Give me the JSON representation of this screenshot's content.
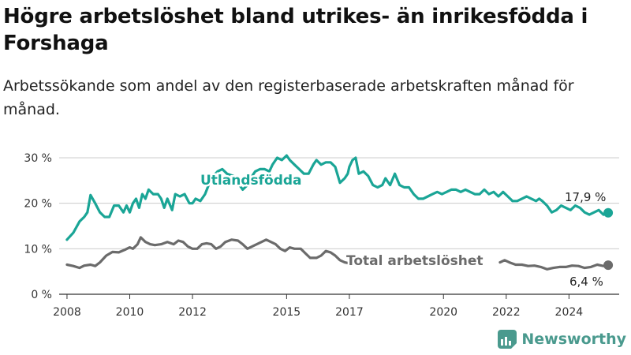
{
  "title": "Högre arbetslöshet bland utrikes- än inrikesfödda i Forshaga",
  "subtitle": "Arbetssökande som andel av den registerbaserade arbetskraften månad för månad.",
  "logo": "Newsworthy",
  "colors": {
    "utlandsfodda": "#1aa596",
    "total": "#6b6b6b",
    "grid": "#cccccc",
    "axis": "#333333"
  },
  "chart_data": {
    "type": "line",
    "xlim": [
      2007.75,
      2025.6
    ],
    "ylim": [
      0,
      30
    ],
    "y_ticks": [
      0,
      10,
      20,
      30
    ],
    "y_tick_labels": [
      "0 %",
      "10 %",
      "20 %",
      "30 %"
    ],
    "x_ticks": [
      2008,
      2010,
      2012,
      2015,
      2017,
      2020,
      2022,
      2024
    ],
    "grid": true,
    "series": [
      {
        "name": "Utlandsfödda",
        "color": "#1aa596",
        "end_label": "17,9 %",
        "points": [
          [
            2008.0,
            12
          ],
          [
            2008.2,
            13.5
          ],
          [
            2008.4,
            16
          ],
          [
            2008.55,
            17
          ],
          [
            2008.65,
            18
          ],
          [
            2008.75,
            21.8
          ],
          [
            2008.9,
            20
          ],
          [
            2009.05,
            18
          ],
          [
            2009.2,
            17
          ],
          [
            2009.35,
            17
          ],
          [
            2009.5,
            19.5
          ],
          [
            2009.65,
            19.5
          ],
          [
            2009.8,
            18
          ],
          [
            2009.9,
            19.5
          ],
          [
            2010.0,
            18
          ],
          [
            2010.1,
            20
          ],
          [
            2010.2,
            21
          ],
          [
            2010.3,
            19
          ],
          [
            2010.4,
            22
          ],
          [
            2010.5,
            21
          ],
          [
            2010.6,
            23
          ],
          [
            2010.75,
            22
          ],
          [
            2010.9,
            22
          ],
          [
            2011.0,
            21
          ],
          [
            2011.1,
            19
          ],
          [
            2011.2,
            21
          ],
          [
            2011.35,
            18.5
          ],
          [
            2011.45,
            22
          ],
          [
            2011.6,
            21.5
          ],
          [
            2011.75,
            22
          ],
          [
            2011.9,
            20
          ],
          [
            2012.0,
            20
          ],
          [
            2012.1,
            21
          ],
          [
            2012.25,
            20.5
          ],
          [
            2012.4,
            22
          ],
          [
            2012.6,
            25.5
          ],
          [
            2012.8,
            27
          ],
          [
            2012.95,
            27.5
          ],
          [
            2013.1,
            26.5
          ],
          [
            2013.3,
            26
          ],
          [
            2013.45,
            24.5
          ],
          [
            2013.6,
            23
          ],
          [
            2013.75,
            24
          ],
          [
            2013.9,
            26
          ],
          [
            2014.0,
            27
          ],
          [
            2014.15,
            27.5
          ],
          [
            2014.3,
            27.5
          ],
          [
            2014.45,
            27
          ],
          [
            2014.55,
            28.5
          ],
          [
            2014.7,
            30
          ],
          [
            2014.85,
            29.5
          ],
          [
            2015.0,
            30.5
          ],
          [
            2015.1,
            29.5
          ],
          [
            2015.25,
            28.5
          ],
          [
            2015.4,
            27.5
          ],
          [
            2015.55,
            26.5
          ],
          [
            2015.7,
            26.5
          ],
          [
            2015.85,
            28.5
          ],
          [
            2015.95,
            29.5
          ],
          [
            2016.1,
            28.5
          ],
          [
            2016.25,
            29
          ],
          [
            2016.4,
            29
          ],
          [
            2016.55,
            28
          ],
          [
            2016.7,
            24.5
          ],
          [
            2016.85,
            25.5
          ],
          [
            2016.95,
            26.5
          ],
          [
            2017.0,
            28
          ],
          [
            2017.1,
            29.5
          ],
          [
            2017.2,
            30
          ],
          [
            2017.3,
            26.5
          ],
          [
            2017.45,
            27
          ],
          [
            2017.6,
            26
          ],
          [
            2017.75,
            24
          ],
          [
            2017.9,
            23.5
          ],
          [
            2018.05,
            24
          ],
          [
            2018.15,
            25.5
          ],
          [
            2018.3,
            24
          ],
          [
            2018.45,
            26.5
          ],
          [
            2018.6,
            24
          ],
          [
            2018.75,
            23.5
          ],
          [
            2018.9,
            23.5
          ],
          [
            2019.05,
            22
          ],
          [
            2019.2,
            21
          ],
          [
            2019.35,
            21
          ],
          [
            2019.5,
            21.5
          ],
          [
            2019.65,
            22
          ],
          [
            2019.8,
            22.5
          ],
          [
            2019.95,
            22
          ],
          [
            2020.1,
            22.5
          ],
          [
            2020.25,
            23
          ],
          [
            2020.4,
            23
          ],
          [
            2020.55,
            22.5
          ],
          [
            2020.7,
            23
          ],
          [
            2020.85,
            22.5
          ],
          [
            2021.0,
            22
          ],
          [
            2021.15,
            22
          ],
          [
            2021.3,
            23
          ],
          [
            2021.45,
            22
          ],
          [
            2021.6,
            22.5
          ],
          [
            2021.75,
            21.5
          ],
          [
            2021.9,
            22.5
          ],
          [
            2022.05,
            21.5
          ],
          [
            2022.2,
            20.5
          ],
          [
            2022.35,
            20.5
          ],
          [
            2022.5,
            21
          ],
          [
            2022.65,
            21.5
          ],
          [
            2022.8,
            21
          ],
          [
            2022.95,
            20.5
          ],
          [
            2023.05,
            21
          ],
          [
            2023.15,
            20.5
          ],
          [
            2023.3,
            19.5
          ],
          [
            2023.45,
            18
          ],
          [
            2023.6,
            18.5
          ],
          [
            2023.75,
            19.5
          ],
          [
            2023.9,
            19
          ],
          [
            2024.05,
            18.5
          ],
          [
            2024.2,
            19.5
          ],
          [
            2024.35,
            19
          ],
          [
            2024.5,
            18
          ],
          [
            2024.65,
            17.5
          ],
          [
            2024.8,
            18
          ],
          [
            2024.95,
            18.5
          ],
          [
            2025.1,
            17.5
          ],
          [
            2025.25,
            17.9
          ]
        ]
      },
      {
        "name": "Total arbetslöshet",
        "color": "#6b6b6b",
        "end_label": "6,4 %",
        "points": [
          [
            2008.0,
            6.5
          ],
          [
            2008.2,
            6.2
          ],
          [
            2008.4,
            5.8
          ],
          [
            2008.55,
            6.3
          ],
          [
            2008.75,
            6.5
          ],
          [
            2008.9,
            6.2
          ],
          [
            2009.05,
            7
          ],
          [
            2009.25,
            8.5
          ],
          [
            2009.45,
            9.3
          ],
          [
            2009.65,
            9.2
          ],
          [
            2009.85,
            9.8
          ],
          [
            2010.0,
            10.3
          ],
          [
            2010.1,
            10
          ],
          [
            2010.25,
            11
          ],
          [
            2010.35,
            12.5
          ],
          [
            2010.5,
            11.5
          ],
          [
            2010.65,
            11
          ],
          [
            2010.8,
            10.8
          ],
          [
            2011.0,
            11
          ],
          [
            2011.2,
            11.5
          ],
          [
            2011.4,
            11
          ],
          [
            2011.55,
            11.8
          ],
          [
            2011.7,
            11.5
          ],
          [
            2011.85,
            10.5
          ],
          [
            2012.0,
            10
          ],
          [
            2012.15,
            10
          ],
          [
            2012.3,
            11
          ],
          [
            2012.45,
            11.2
          ],
          [
            2012.6,
            11
          ],
          [
            2012.75,
            10
          ],
          [
            2012.9,
            10.5
          ],
          [
            2013.05,
            11.5
          ],
          [
            2013.25,
            12
          ],
          [
            2013.45,
            11.8
          ],
          [
            2013.6,
            11
          ],
          [
            2013.75,
            10
          ],
          [
            2013.9,
            10.5
          ],
          [
            2014.05,
            11
          ],
          [
            2014.2,
            11.5
          ],
          [
            2014.35,
            12
          ],
          [
            2014.5,
            11.5
          ],
          [
            2014.65,
            11
          ],
          [
            2014.8,
            10
          ],
          [
            2014.95,
            9.5
          ],
          [
            2015.1,
            10.3
          ],
          [
            2015.25,
            10
          ],
          [
            2015.45,
            10
          ],
          [
            2015.6,
            9
          ],
          [
            2015.75,
            8
          ],
          [
            2015.95,
            8
          ],
          [
            2016.1,
            8.5
          ],
          [
            2016.25,
            9.5
          ],
          [
            2016.4,
            9.2
          ],
          [
            2016.55,
            8.5
          ],
          [
            2016.7,
            7.5
          ],
          [
            2016.85,
            7
          ],
          [
            2017.0,
            6.8
          ]
        ],
        "points_late": [
          [
            2021.8,
            7
          ],
          [
            2021.95,
            7.5
          ],
          [
            2022.1,
            7
          ],
          [
            2022.3,
            6.5
          ],
          [
            2022.5,
            6.5
          ],
          [
            2022.7,
            6.2
          ],
          [
            2022.9,
            6.3
          ],
          [
            2023.1,
            6
          ],
          [
            2023.3,
            5.5
          ],
          [
            2023.5,
            5.8
          ],
          [
            2023.7,
            6
          ],
          [
            2023.9,
            6
          ],
          [
            2024.1,
            6.3
          ],
          [
            2024.3,
            6.2
          ],
          [
            2024.5,
            5.8
          ],
          [
            2024.7,
            6
          ],
          [
            2024.9,
            6.5
          ],
          [
            2025.1,
            6.2
          ],
          [
            2025.25,
            6.4
          ]
        ]
      }
    ]
  }
}
